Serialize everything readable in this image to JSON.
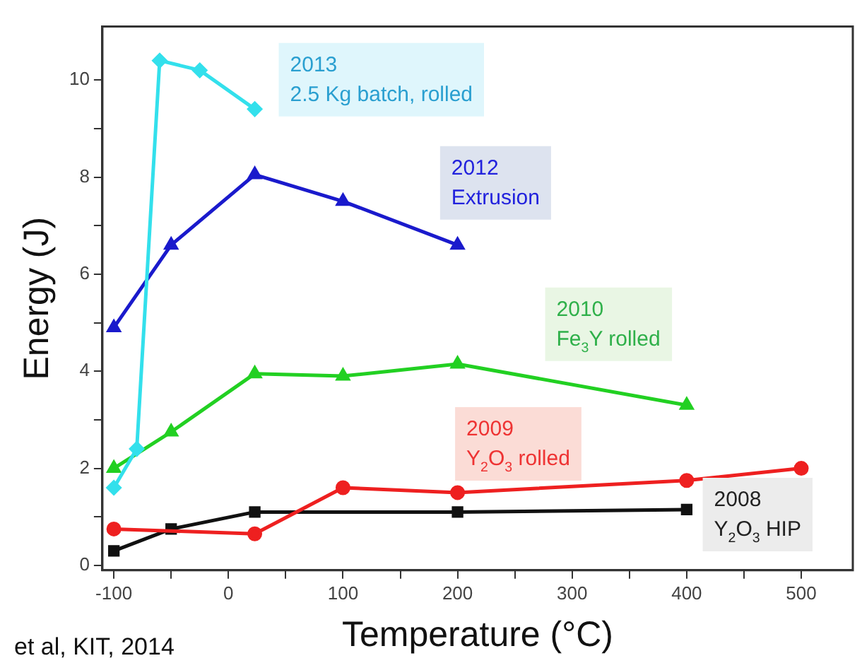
{
  "chart_data": {
    "type": "line",
    "xlabel": "Temperature (°C)",
    "ylabel": "Energy (J)",
    "xlim": [
      -110,
      545
    ],
    "ylim": [
      -0.1,
      11.1
    ],
    "xticks": [
      -100,
      {
        "value": -50,
        "label": null
      },
      0,
      {
        "value": 50,
        "label": null
      },
      100,
      {
        "value": 150,
        "label": null
      },
      200,
      {
        "value": 250,
        "label": null
      },
      300,
      {
        "value": 350,
        "label": null
      },
      400,
      {
        "value": 450,
        "label": null
      },
      500
    ],
    "yticks": [
      0,
      {
        "value": 1,
        "label": null
      },
      2,
      {
        "value": 3,
        "label": null
      },
      4,
      {
        "value": 5,
        "label": null
      },
      6,
      {
        "value": 7,
        "label": null
      },
      8,
      {
        "value": 9,
        "label": null
      },
      10
    ],
    "grid": false,
    "legend": false,
    "series": [
      {
        "name": "2013\n2.5 Kg batch, rolled",
        "color": "#33e0ec",
        "marker": "diamond",
        "x": [
          -100,
          -80,
          -60,
          -25,
          23
        ],
        "values": [
          1.6,
          2.4,
          10.4,
          10.2,
          9.4
        ]
      },
      {
        "name": "2012\nExtrusion",
        "color": "#1a1acc",
        "marker": "triangle",
        "x": [
          -100,
          -50,
          23,
          100,
          200
        ],
        "values": [
          4.9,
          6.6,
          8.05,
          7.5,
          6.6
        ]
      },
      {
        "name": "2010\nFe$_{3}$Y rolled",
        "color": "#22d022",
        "marker": "triangle",
        "x": [
          -100,
          -50,
          23,
          100,
          200,
          400
        ],
        "values": [
          2.0,
          2.75,
          3.95,
          3.9,
          4.15,
          3.3
        ]
      },
      {
        "name": "2009\nY$_{2}$O$_{3}$ rolled",
        "color": "#ee2020",
        "marker": "circle",
        "x": [
          -100,
          23,
          100,
          200,
          400,
          500
        ],
        "values": [
          0.75,
          0.65,
          1.6,
          1.5,
          1.75,
          2.0
        ]
      },
      {
        "name": "2008\nY$_{2}$O$_{3}$ HIP",
        "color": "#111111",
        "marker": "square",
        "x": [
          -100,
          -50,
          23,
          200,
          400
        ],
        "values": [
          0.3,
          0.75,
          1.1,
          1.1,
          1.15
        ]
      }
    ],
    "annotations": [
      "et al, KIT, 2014"
    ]
  }
}
